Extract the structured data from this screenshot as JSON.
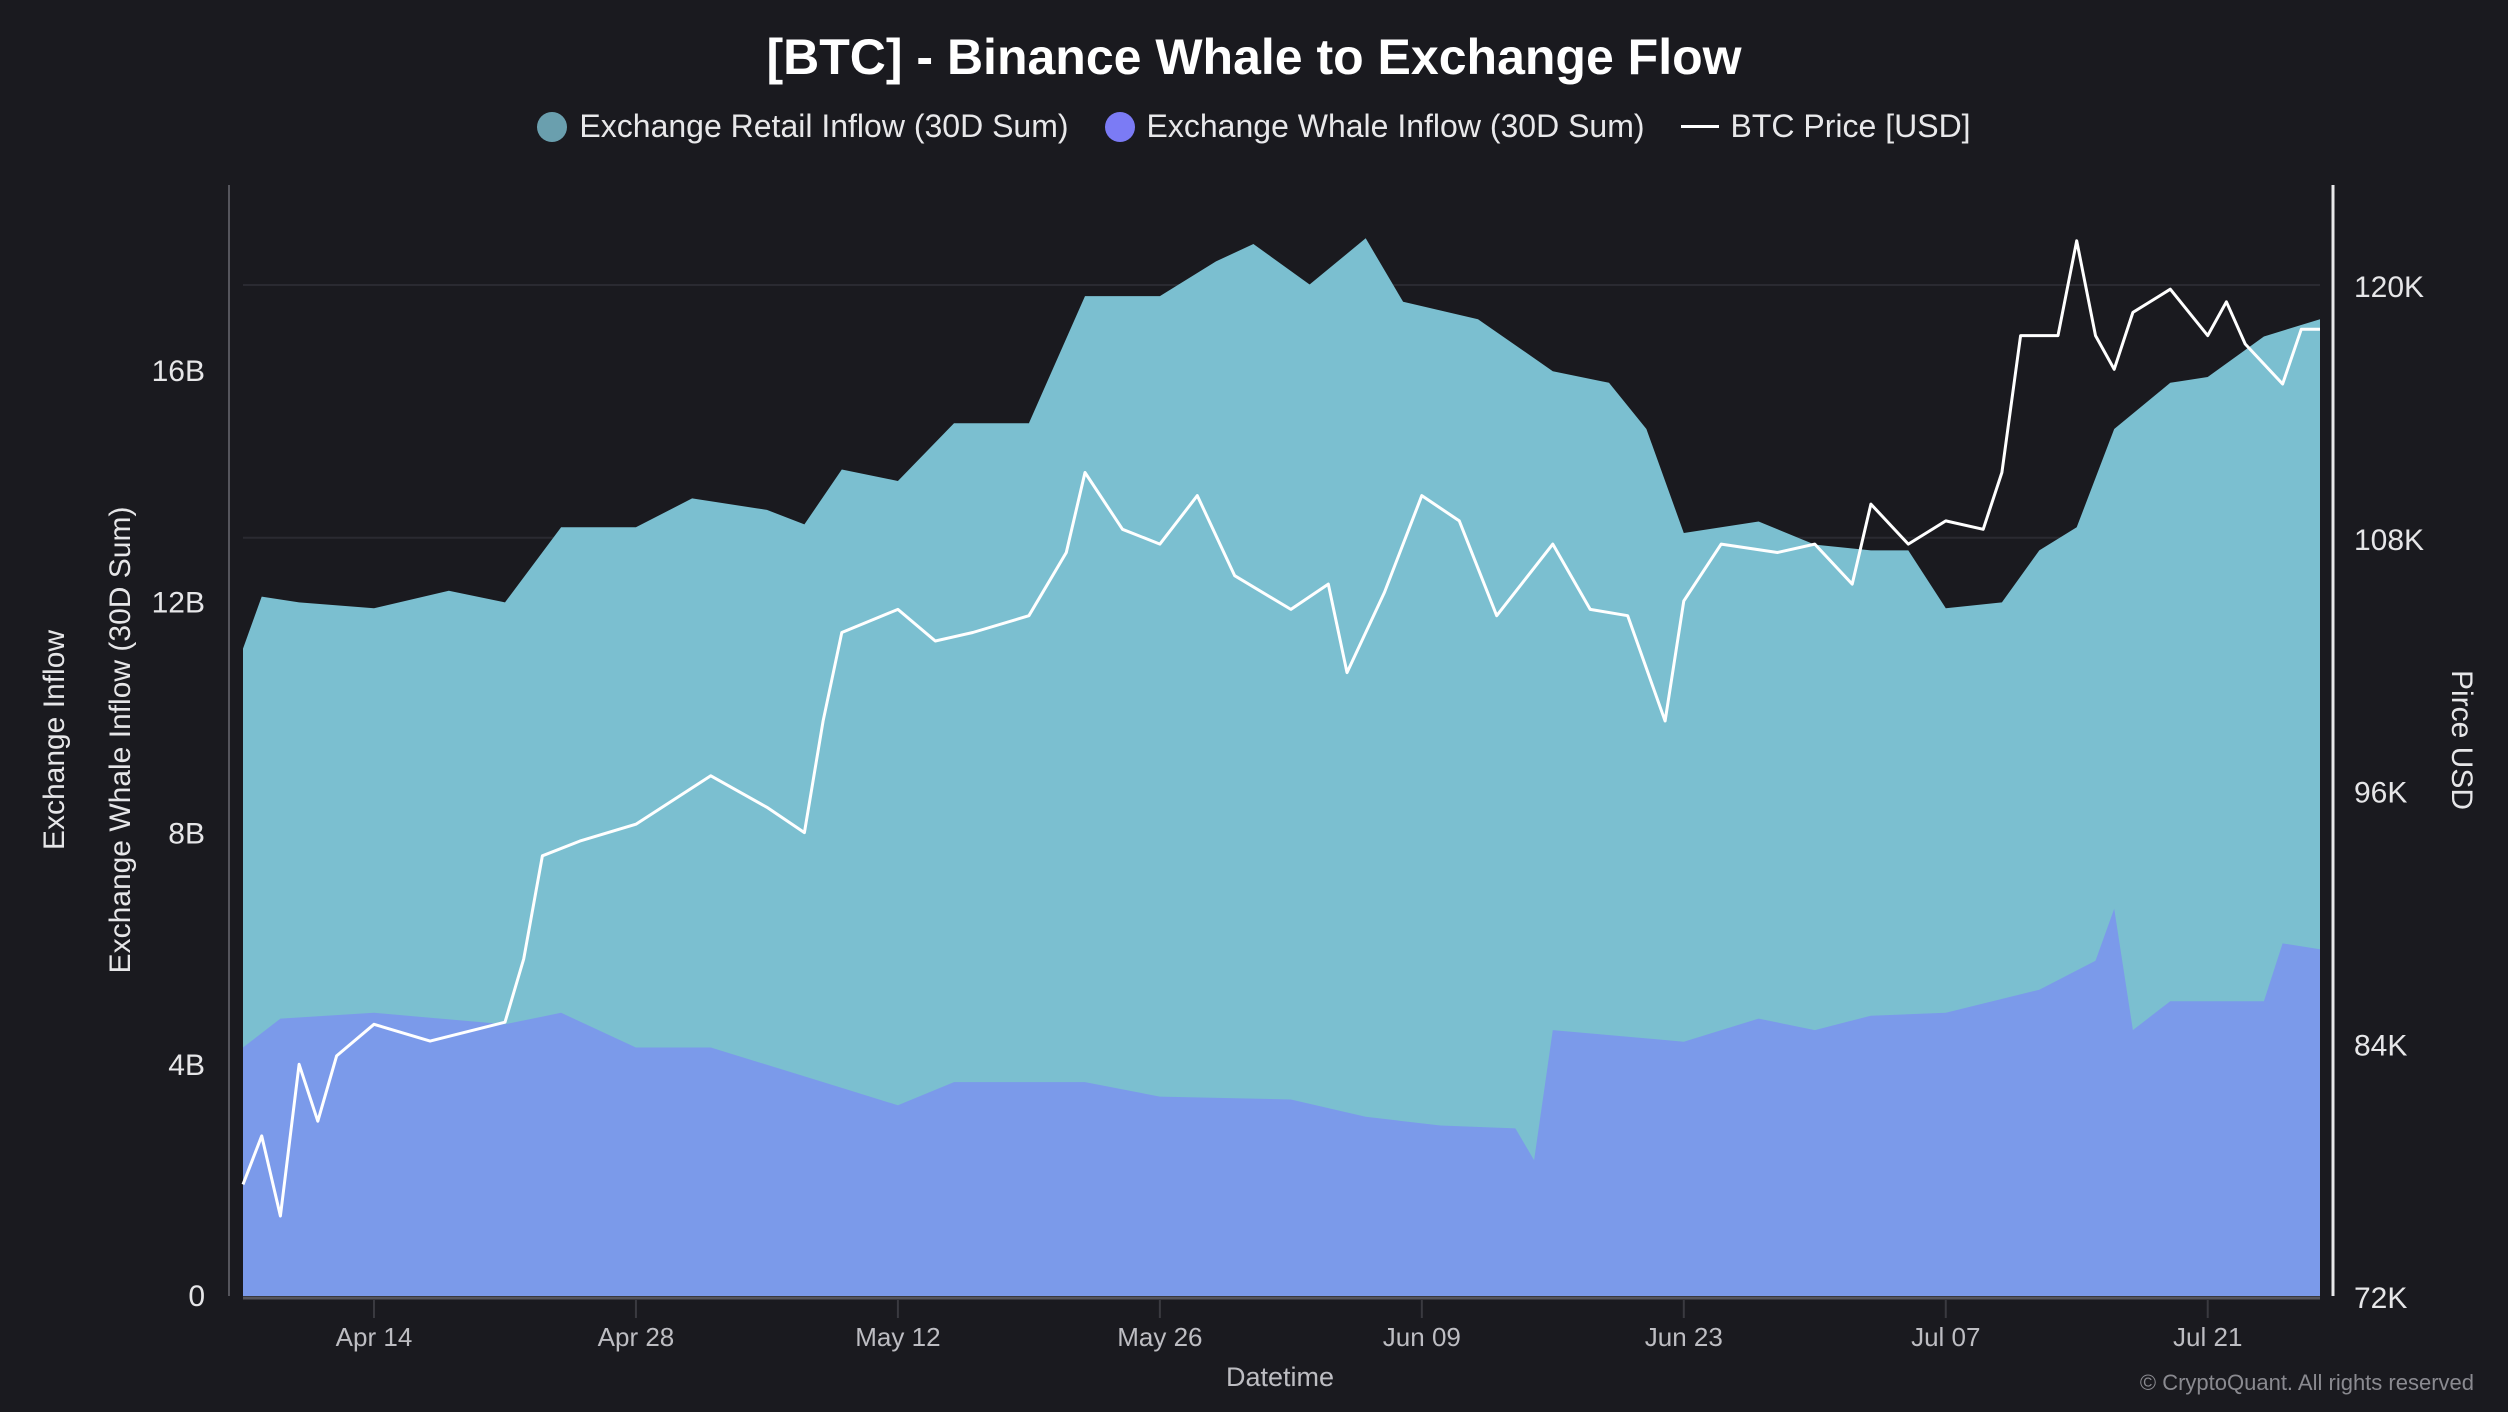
{
  "chart_data": {
    "type": "area",
    "title": "[BTC] - Binance Whale to Exchange Flow",
    "xlabel": "Datetime",
    "ylabel_left_outer": "Exchange Inflow",
    "ylabel_left": "Exchange Whale Inflow (30D Sum)",
    "ylabel_right": "Pirce USD",
    "copyright": "© CryptoQuant. All rights reserved",
    "x_ticks": [
      "Apr 14",
      "Apr 28",
      "May 12",
      "May 26",
      "Jun 09",
      "Jun 23",
      "Jul 07",
      "Jul 21"
    ],
    "x_range": [
      "Apr 07",
      "Jul 27"
    ],
    "y_left": {
      "range": [
        0,
        19.2
      ],
      "ticks": [
        0,
        4,
        8,
        12,
        16
      ],
      "tick_labels": [
        "0",
        "4B",
        "8B",
        "12B",
        "16B"
      ],
      "unit": "B"
    },
    "y_right": {
      "range": [
        72,
        124.5
      ],
      "ticks": [
        72,
        84,
        96,
        108,
        120
      ],
      "tick_labels": [
        "72K",
        "84K",
        "96K",
        "108K",
        "120K"
      ],
      "unit": "K"
    },
    "grid": "horizontal at right-axis ticks (faint)",
    "legend_position": "top",
    "series": [
      {
        "name": "Exchange Retail Inflow (30D Sum)",
        "axis": "left",
        "kind": "area",
        "color": "#7bbfd0",
        "legend_color": "#6a9fae",
        "points": [
          [
            "Apr 07",
            11.2
          ],
          [
            "Apr 08",
            12.1
          ],
          [
            "Apr 10",
            12.0
          ],
          [
            "Apr 14",
            11.9
          ],
          [
            "Apr 18",
            12.2
          ],
          [
            "Apr 21",
            12.0
          ],
          [
            "Apr 24",
            13.3
          ],
          [
            "Apr 28",
            13.3
          ],
          [
            "May 01",
            13.8
          ],
          [
            "May 05",
            13.6
          ],
          [
            "May 07",
            13.35
          ],
          [
            "May 09",
            14.3
          ],
          [
            "May 12",
            14.1
          ],
          [
            "May 15",
            15.1
          ],
          [
            "May 19",
            15.1
          ],
          [
            "May 22",
            17.3
          ],
          [
            "May 26",
            17.3
          ],
          [
            "May 29",
            17.9
          ],
          [
            "May 31",
            18.2
          ],
          [
            "Jun 03",
            17.5
          ],
          [
            "Jun 06",
            18.3
          ],
          [
            "Jun 08",
            17.2
          ],
          [
            "Jun 12",
            16.9
          ],
          [
            "Jun 16",
            16.0
          ],
          [
            "Jun 19",
            15.8
          ],
          [
            "Jun 21",
            15.0
          ],
          [
            "Jun 23",
            13.2
          ],
          [
            "Jun 27",
            13.4
          ],
          [
            "Jun 30",
            13.0
          ],
          [
            "Jul 03",
            12.9
          ],
          [
            "Jul 05",
            12.9
          ],
          [
            "Jul 07",
            11.9
          ],
          [
            "Jul 10",
            12.0
          ],
          [
            "Jul 12",
            12.9
          ],
          [
            "Jul 14",
            13.3
          ],
          [
            "Jul 16",
            15.0
          ],
          [
            "Jul 19",
            15.8
          ],
          [
            "Jul 21",
            15.9
          ],
          [
            "Jul 24",
            16.6
          ],
          [
            "Jul 27",
            16.9
          ]
        ]
      },
      {
        "name": "Exchange Whale Inflow (30D Sum)",
        "axis": "left",
        "kind": "area",
        "color": "#7b9aea",
        "legend_color": "#7b7bf5",
        "points": [
          [
            "Apr 07",
            4.3
          ],
          [
            "Apr 09",
            4.8
          ],
          [
            "Apr 14",
            4.9
          ],
          [
            "Apr 21",
            4.7
          ],
          [
            "Apr 24",
            4.9
          ],
          [
            "Apr 28",
            4.3
          ],
          [
            "May 02",
            4.3
          ],
          [
            "May 05",
            4.0
          ],
          [
            "May 09",
            3.6
          ],
          [
            "May 12",
            3.3
          ],
          [
            "May 15",
            3.7
          ],
          [
            "May 22",
            3.7
          ],
          [
            "May 26",
            3.45
          ],
          [
            "Jun 02",
            3.4
          ],
          [
            "Jun 06",
            3.1
          ],
          [
            "Jun 10",
            2.95
          ],
          [
            "Jun 14",
            2.9
          ],
          [
            "Jun 15",
            2.35
          ],
          [
            "Jun 16",
            4.6
          ],
          [
            "Jun 23",
            4.4
          ],
          [
            "Jun 27",
            4.8
          ],
          [
            "Jun 30",
            4.6
          ],
          [
            "Jul 03",
            4.85
          ],
          [
            "Jul 07",
            4.9
          ],
          [
            "Jul 12",
            5.3
          ],
          [
            "Jul 15",
            5.8
          ],
          [
            "Jul 16",
            6.7
          ],
          [
            "Jul 17",
            4.6
          ],
          [
            "Jul 19",
            5.1
          ],
          [
            "Jul 24",
            5.1
          ],
          [
            "Jul 25",
            6.1
          ],
          [
            "Jul 27",
            6.0
          ]
        ]
      },
      {
        "name": "BTC Price [USD]",
        "axis": "right",
        "kind": "line",
        "color": "#ffffff",
        "points": [
          [
            "Apr 07",
            77.3
          ],
          [
            "Apr 08",
            79.6
          ],
          [
            "Apr 09",
            75.8
          ],
          [
            "Apr 10",
            83.0
          ],
          [
            "Apr 11",
            80.3
          ],
          [
            "Apr 12",
            83.4
          ],
          [
            "Apr 14",
            84.9
          ],
          [
            "Apr 17",
            84.1
          ],
          [
            "Apr 21",
            85.0
          ],
          [
            "Apr 22",
            88.0
          ],
          [
            "Apr 23",
            92.9
          ],
          [
            "Apr 25",
            93.6
          ],
          [
            "Apr 28",
            94.4
          ],
          [
            "May 02",
            96.7
          ],
          [
            "May 05",
            95.2
          ],
          [
            "May 07",
            94.0
          ],
          [
            "May 08",
            99.3
          ],
          [
            "May 09",
            103.5
          ],
          [
            "May 12",
            104.6
          ],
          [
            "May 14",
            103.1
          ],
          [
            "May 16",
            103.5
          ],
          [
            "May 19",
            104.3
          ],
          [
            "May 21",
            107.3
          ],
          [
            "May 22",
            111.1
          ],
          [
            "May 24",
            108.4
          ],
          [
            "May 26",
            107.7
          ],
          [
            "May 28",
            110.0
          ],
          [
            "May 30",
            106.2
          ],
          [
            "Jun 02",
            104.6
          ],
          [
            "Jun 04",
            105.8
          ],
          [
            "Jun 05",
            101.6
          ],
          [
            "Jun 07",
            105.4
          ],
          [
            "Jun 09",
            110.0
          ],
          [
            "Jun 11",
            108.8
          ],
          [
            "Jun 13",
            104.3
          ],
          [
            "Jun 16",
            107.7
          ],
          [
            "Jun 18",
            104.6
          ],
          [
            "Jun 20",
            104.3
          ],
          [
            "Jun 22",
            99.3
          ],
          [
            "Jun 23",
            105.0
          ],
          [
            "Jun 25",
            107.7
          ],
          [
            "Jun 28",
            107.3
          ],
          [
            "Jun 30",
            107.7
          ],
          [
            "Jul 02",
            105.8
          ],
          [
            "Jul 03",
            109.6
          ],
          [
            "Jul 05",
            107.7
          ],
          [
            "Jul 07",
            108.8
          ],
          [
            "Jul 09",
            108.4
          ],
          [
            "Jul 10",
            111.1
          ],
          [
            "Jul 11",
            117.6
          ],
          [
            "Jul 13",
            117.6
          ],
          [
            "Jul 14",
            122.1
          ],
          [
            "Jul 15",
            117.6
          ],
          [
            "Jul 16",
            116.0
          ],
          [
            "Jul 17",
            118.7
          ],
          [
            "Jul 19",
            119.8
          ],
          [
            "Jul 21",
            117.6
          ],
          [
            "Jul 22",
            119.2
          ],
          [
            "Jul 23",
            117.2
          ],
          [
            "Jul 25",
            115.3
          ],
          [
            "Jul 26",
            117.9
          ],
          [
            "Jul 27",
            117.9
          ]
        ]
      }
    ]
  }
}
